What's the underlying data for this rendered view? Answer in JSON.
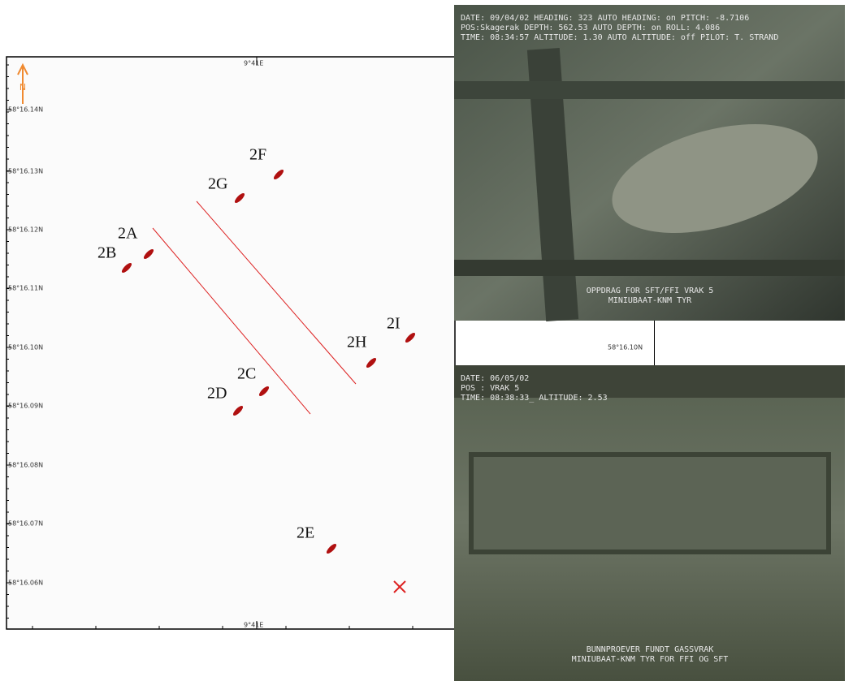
{
  "map": {
    "north": "N",
    "lon_top": "9°41E",
    "lon_bottom": "9°41E",
    "lat_labels": [
      "58°16.14N",
      "58°16.13N",
      "58°16.12N",
      "58°16.11N",
      "58°16.10N",
      "58°16.09N",
      "58°16.08N",
      "58°16.07N",
      "58°16.06N"
    ],
    "lat_right": "58°16.10N",
    "markers": [
      "2F",
      "2G",
      "2A",
      "2B",
      "2C",
      "2D",
      "2H",
      "2I",
      "2E"
    ]
  },
  "photos": [
    {
      "osd": [
        "DATE: 09/04/02    HEADING:    323  AUTO HEADING: on    PITCH: -8.7106",
        "POS:Skagerak     DEPTH:   562.53  AUTO DEPTH: on      ROLL:   4.086",
        "TIME: 08:34:57   ALTITUDE:   1.30  AUTO ALTITUDE: off  PILOT: T. STRAND"
      ],
      "caption": [
        "OPPDRAG FOR SFT/FFI VRAK 5",
        "MINIUBAAT-KNM TYR"
      ]
    },
    {
      "osd": [
        "DATE: 06/05/02",
        "POS : VRAK 5",
        "TIME: 08:38:33_  ALTITUDE:  2.53"
      ],
      "caption": [
        "BUNNPROEVER FUNDT GASSVRAK",
        "MINIUBAAT-KNM TYR FOR FFI OG SFT"
      ]
    }
  ]
}
